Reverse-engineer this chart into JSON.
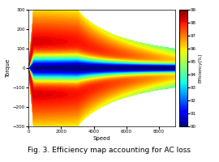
{
  "title": "Fig. 3. Efficiency map accounting for AC loss",
  "xlabel": "Speed",
  "ylabel": "Torque",
  "colorbar_label": "Efficiency[%]",
  "xlim": [
    0,
    9000
  ],
  "ylim": [
    -300,
    300
  ],
  "colorbar_ticks": [
    90,
    91,
    92,
    93,
    94,
    95,
    96,
    97,
    98,
    99
  ],
  "speed_max": 9000,
  "torque_max": 300,
  "efficiency_min": 90,
  "efficiency_max": 99,
  "speed_base": 3000,
  "background_color": "#ffffff"
}
